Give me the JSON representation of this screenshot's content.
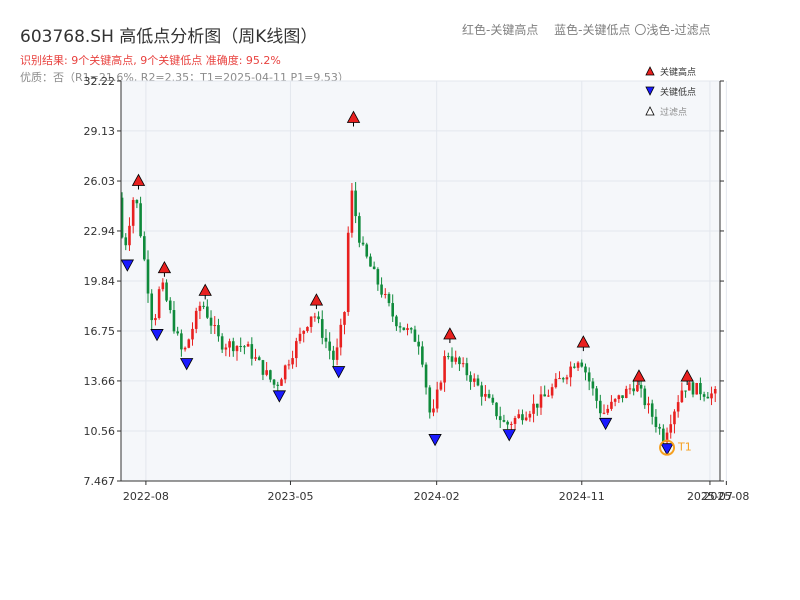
{
  "header": {
    "title": "603768.SH 高低点分析图（周K线图）",
    "result_line": "识别结果: 9个关键高点, 9个关键低点  准确度: 95.2%",
    "quality_line": "优质：否（R1=21.6%, R2=2.35；T1=2025-04-11 P1=9.53）",
    "legend_top": {
      "red": "红色-关键高点",
      "blue": "蓝色-关键低点",
      "light": "〇浅色-过滤点"
    }
  },
  "colors": {
    "up": "#e8201f",
    "down": "#0f8a3b",
    "high_marker": "#e8201f",
    "low_marker": "#1a1aff",
    "t1_marker": "#f5a020",
    "grid": "#e3e7ee",
    "plot_bg": "#f5f7fa"
  },
  "chart_data": {
    "type": "candlestick",
    "ylim": [
      7.467,
      32.22
    ],
    "yticks": [
      7.467,
      10.56,
      13.66,
      16.75,
      19.84,
      22.94,
      26.03,
      29.13,
      32.22
    ],
    "ytick_labels": [
      "7.467",
      "10.56",
      "13.66",
      "16.75",
      "19.84",
      "22.94",
      "26.03",
      "29.13",
      "32.22"
    ],
    "xlim": [
      "2022-06-15",
      "2025-07-20"
    ],
    "xticks": [
      "2022-08-01",
      "2023-05-01",
      "2024-02-01",
      "2024-11-01",
      "2025-07-01",
      "2025-08-01"
    ],
    "xtick_labels": [
      "2022-08",
      "2023-05",
      "2024-02",
      "2024-11",
      "2025-07",
      "2025-08"
    ],
    "grid": true,
    "legend": {
      "placement": "top-right",
      "entries": [
        {
          "label": "关键高点",
          "marker": "high"
        },
        {
          "label": "关键低点",
          "marker": "low"
        },
        {
          "label": "过滤点",
          "marker": "filtered"
        }
      ]
    },
    "key_highs": [
      {
        "date": "2022-07-18",
        "price": 26.0
      },
      {
        "date": "2022-09-05",
        "price": 20.6
      },
      {
        "date": "2022-11-21",
        "price": 19.2
      },
      {
        "date": "2023-06-19",
        "price": 18.6
      },
      {
        "date": "2023-08-28",
        "price": 29.9
      },
      {
        "date": "2024-02-26",
        "price": 16.5
      },
      {
        "date": "2024-11-04",
        "price": 16.0
      },
      {
        "date": "2025-02-17",
        "price": 13.9
      },
      {
        "date": "2025-05-19",
        "price": 13.9
      }
    ],
    "key_lows": [
      {
        "date": "2022-06-27",
        "price": 20.9
      },
      {
        "date": "2022-08-22",
        "price": 16.6
      },
      {
        "date": "2022-10-17",
        "price": 14.8
      },
      {
        "date": "2023-04-10",
        "price": 12.8
      },
      {
        "date": "2023-07-31",
        "price": 14.3
      },
      {
        "date": "2024-01-29",
        "price": 10.1
      },
      {
        "date": "2024-06-17",
        "price": 10.4
      },
      {
        "date": "2024-12-16",
        "price": 11.1
      },
      {
        "date": "2025-04-11",
        "price": 9.53
      }
    ],
    "t1": {
      "date": "2025-04-11",
      "price": 9.53,
      "label": "T1"
    },
    "anchors": [
      [
        "2022-06-17",
        25.0
      ],
      [
        "2022-06-27",
        21.5
      ],
      [
        "2022-07-18",
        25.5
      ],
      [
        "2022-08-22",
        17.0
      ],
      [
        "2022-09-05",
        19.8
      ],
      [
        "2022-10-17",
        15.2
      ],
      [
        "2022-11-21",
        18.6
      ],
      [
        "2022-12-26",
        16.0
      ],
      [
        "2023-02-13",
        15.8
      ],
      [
        "2023-04-10",
        13.3
      ],
      [
        "2023-05-08",
        15.2
      ],
      [
        "2023-06-19",
        18.0
      ],
      [
        "2023-07-31",
        14.8
      ],
      [
        "2023-08-21",
        18.5
      ],
      [
        "2023-08-28",
        26.0
      ],
      [
        "2023-09-18",
        22.0
      ],
      [
        "2023-10-16",
        20.0
      ],
      [
        "2023-11-20",
        17.5
      ],
      [
        "2024-01-08",
        16.0
      ],
      [
        "2024-01-29",
        11.0
      ],
      [
        "2024-02-26",
        15.5
      ],
      [
        "2024-04-15",
        13.8
      ],
      [
        "2024-06-17",
        10.9
      ],
      [
        "2024-08-26",
        12.5
      ],
      [
        "2024-09-30",
        13.8
      ],
      [
        "2024-11-04",
        15.2
      ],
      [
        "2024-12-16",
        11.6
      ],
      [
        "2025-02-17",
        13.5
      ],
      [
        "2025-04-11",
        10.2
      ],
      [
        "2025-05-19",
        13.4
      ],
      [
        "2025-07-14",
        12.8
      ]
    ]
  }
}
